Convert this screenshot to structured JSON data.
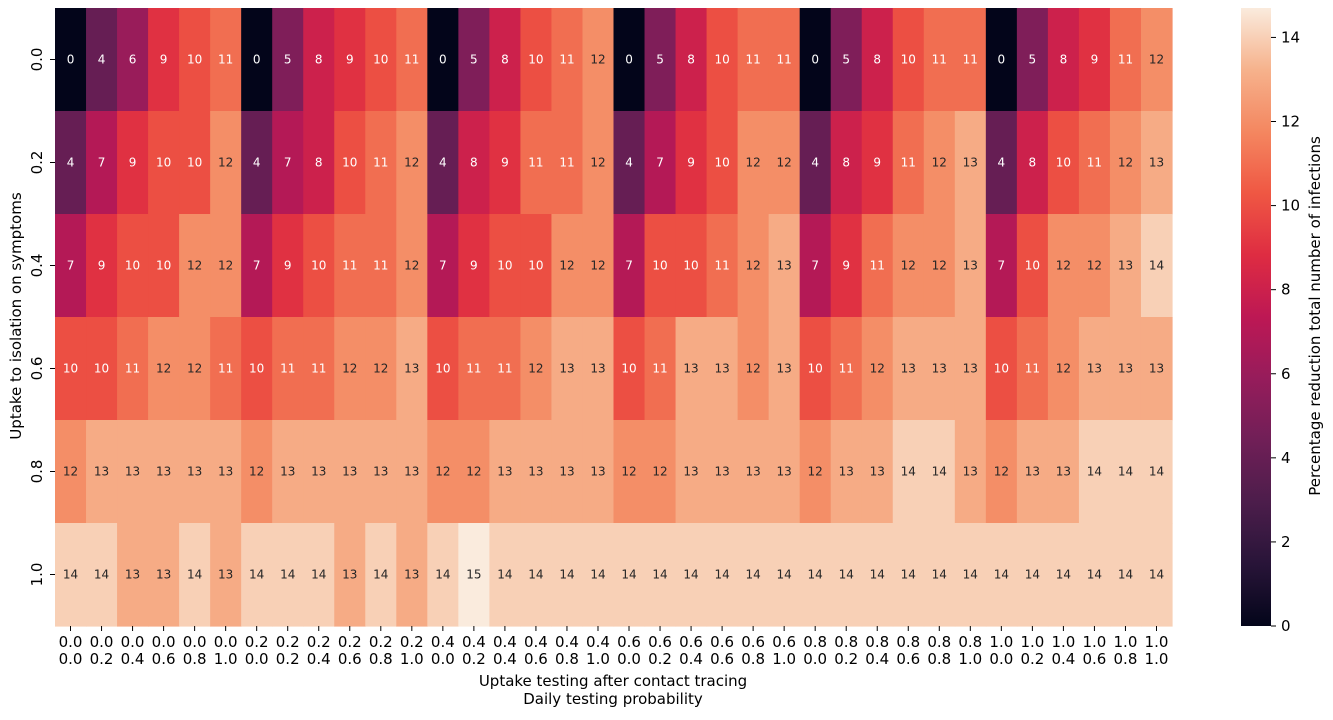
{
  "chart_data": {
    "type": "heatmap",
    "title": "",
    "xlabel": [
      "Uptake testing after contact tracing",
      "Daily testing probability"
    ],
    "ylabel": "Uptake to isolation on symptoms",
    "x_tick_labels_top": [
      "0.0",
      "0.0",
      "0.0",
      "0.0",
      "0.0",
      "0.0",
      "0.2",
      "0.2",
      "0.2",
      "0.2",
      "0.2",
      "0.2",
      "0.4",
      "0.4",
      "0.4",
      "0.4",
      "0.4",
      "0.4",
      "0.6",
      "0.6",
      "0.6",
      "0.6",
      "0.6",
      "0.6",
      "0.8",
      "0.8",
      "0.8",
      "0.8",
      "0.8",
      "0.8",
      "1.0",
      "1.0",
      "1.0",
      "1.0",
      "1.0",
      "1.0"
    ],
    "x_tick_labels_bottom": [
      "0.0",
      "0.2",
      "0.4",
      "0.6",
      "0.8",
      "1.0",
      "0.0",
      "0.2",
      "0.4",
      "0.6",
      "0.8",
      "1.0",
      "0.0",
      "0.2",
      "0.4",
      "0.6",
      "0.8",
      "1.0",
      "0.0",
      "0.2",
      "0.4",
      "0.6",
      "0.8",
      "1.0",
      "0.0",
      "0.2",
      "0.4",
      "0.6",
      "0.8",
      "1.0",
      "0.0",
      "0.2",
      "0.4",
      "0.6",
      "0.8",
      "1.0"
    ],
    "y_tick_labels": [
      "0.0",
      "0.2",
      "0.4",
      "0.6",
      "0.8",
      "1.0"
    ],
    "values": [
      [
        0,
        4,
        6,
        9,
        10,
        11,
        0,
        5,
        8,
        9,
        10,
        11,
        0,
        5,
        8,
        10,
        11,
        12,
        0,
        5,
        8,
        10,
        11,
        11,
        0,
        5,
        8,
        10,
        11,
        11,
        0,
        5,
        8,
        9,
        11,
        12
      ],
      [
        4,
        7,
        9,
        10,
        10,
        12,
        4,
        7,
        8,
        10,
        11,
        12,
        4,
        8,
        9,
        11,
        11,
        12,
        4,
        7,
        9,
        10,
        12,
        12,
        4,
        8,
        9,
        11,
        12,
        13,
        4,
        8,
        10,
        11,
        12,
        13
      ],
      [
        7,
        9,
        10,
        10,
        12,
        12,
        7,
        9,
        10,
        11,
        11,
        12,
        7,
        9,
        10,
        10,
        12,
        12,
        7,
        10,
        10,
        11,
        12,
        13,
        7,
        9,
        11,
        12,
        12,
        13,
        7,
        10,
        12,
        12,
        13,
        14
      ],
      [
        10,
        10,
        11,
        12,
        12,
        11,
        10,
        11,
        11,
        12,
        12,
        13,
        10,
        11,
        11,
        12,
        13,
        13,
        10,
        11,
        13,
        13,
        12,
        13,
        10,
        11,
        12,
        13,
        13,
        13,
        10,
        11,
        12,
        13,
        13,
        13
      ],
      [
        12,
        13,
        13,
        13,
        13,
        13,
        12,
        13,
        13,
        13,
        13,
        13,
        12,
        12,
        13,
        13,
        13,
        13,
        12,
        12,
        13,
        13,
        13,
        13,
        12,
        13,
        13,
        14,
        14,
        13,
        12,
        13,
        13,
        14,
        14,
        14
      ],
      [
        14,
        14,
        13,
        13,
        14,
        13,
        14,
        14,
        14,
        13,
        14,
        13,
        14,
        15,
        14,
        14,
        14,
        14,
        14,
        14,
        14,
        14,
        14,
        14,
        14,
        14,
        14,
        14,
        14,
        14,
        14,
        14,
        14,
        14,
        14,
        14
      ]
    ],
    "colorbar": {
      "label": "Percentage reduction total number of infections",
      "range": [
        0,
        14.7
      ],
      "ticks": [
        0,
        2,
        4,
        6,
        8,
        10,
        12,
        14
      ],
      "colormap": "rocket"
    }
  }
}
